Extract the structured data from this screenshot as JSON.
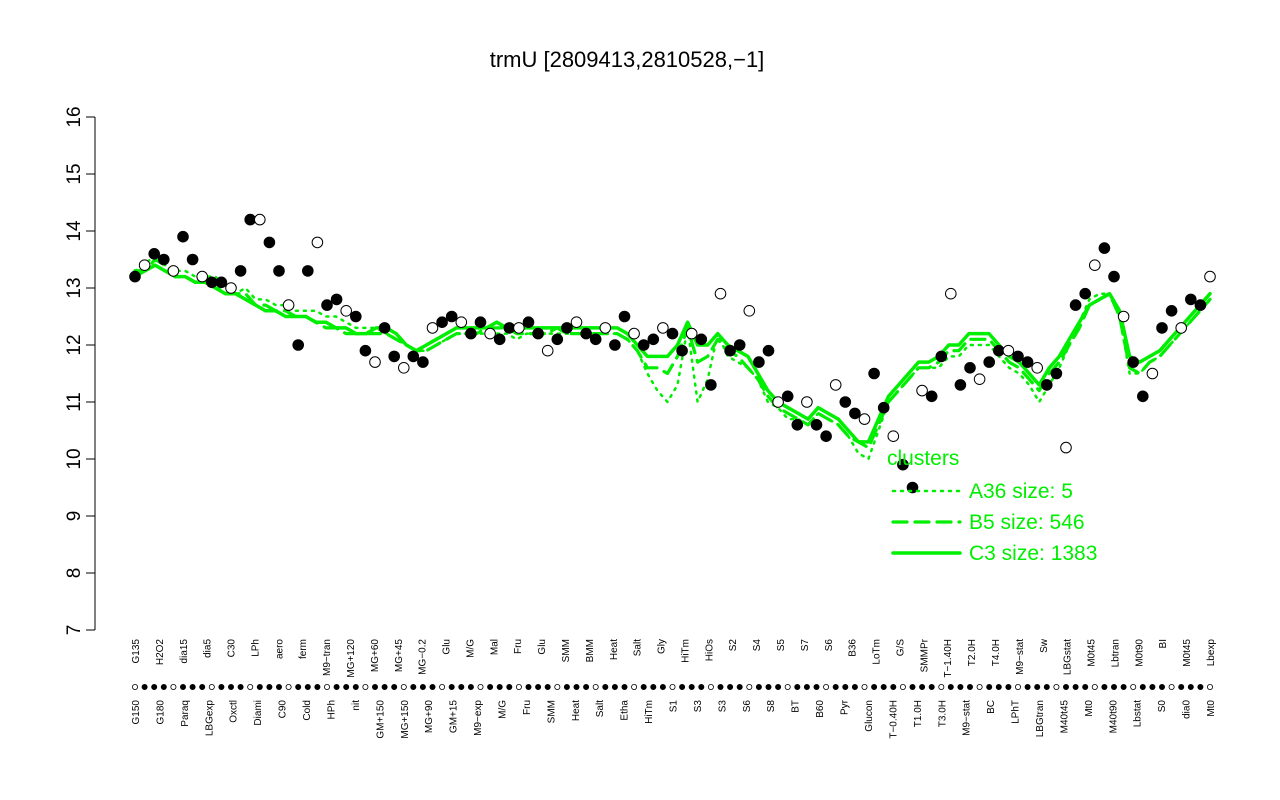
{
  "chart_data": {
    "type": "scatter",
    "title": "trmU [2809413,2810528,−1]",
    "xlabel": "",
    "ylabel": "",
    "ylim": [
      7,
      16
    ],
    "yticks": [
      7,
      8,
      9,
      10,
      11,
      12,
      13,
      14,
      15,
      16
    ],
    "grid": false,
    "legend_position": "bottom-right",
    "legend": {
      "title": "clusters",
      "entries": [
        {
          "label": "A36 size: 5",
          "style": "dotted"
        },
        {
          "label": "B5 size: 546",
          "style": "dashed"
        },
        {
          "label": "C3 size: 1383",
          "style": "solid"
        }
      ]
    },
    "x_tick_labels_top": [
      "G135",
      "H2O2",
      "dia15",
      "dia5",
      "C30",
      "LPh",
      "aero",
      "ferm",
      "M9−tran",
      "MG+120",
      "MG+60",
      "MG+45",
      "MG−0.2",
      "Glu",
      "M/G",
      "Mal",
      "Fru",
      "Glu",
      "SMM",
      "BMM",
      "Heat",
      "Salt",
      "Gly",
      "HiTm",
      "HiOs",
      "S2",
      "S4",
      "S5",
      "S7",
      "S6",
      "B36",
      "LoTm",
      "G/S",
      "SMMPr",
      "T−1.40H",
      "T2.0H",
      "T4.0H",
      "M9−stat",
      "Sw",
      "LBGstat",
      "M0t45",
      "Lbtran",
      "M0t90",
      "BI",
      "M0t45",
      "Lbexp"
    ],
    "x_tick_labels_bottom": [
      "G150",
      "G180",
      "Paraq",
      "LBGexp",
      "Oxctl",
      "Diami",
      "C90",
      "Cold",
      "HPh",
      "nit",
      "GM+150",
      "MG+150",
      "MG+90",
      "GM+15",
      "M9−exp",
      "M/G",
      "Fru",
      "SMM",
      "Heat",
      "Salt",
      "Etha",
      "HiTm",
      "S1",
      "S3",
      "S3",
      "S6",
      "S8",
      "BT",
      "B60",
      "Pyr",
      "Glucon",
      "T−0.40H",
      "T1.0H",
      "T3.0H",
      "M9−stat",
      "BC",
      "LPhT",
      "LBGtran",
      "M40t45",
      "Mt0",
      "M40t90",
      "Lbstat",
      "S0",
      "dia0",
      "Mt0"
    ],
    "series": [
      {
        "name": "A36 size: 5",
        "style": "dotted",
        "values": [
          13.3,
          13.4,
          13.6,
          13.4,
          13.3,
          13.3,
          13.2,
          13.2,
          13.2,
          13.0,
          12.9,
          13.0,
          12.8,
          12.8,
          12.7,
          12.7,
          12.6,
          12.6,
          12.6,
          12.5,
          12.5,
          12.4,
          12.3,
          12.3,
          12.3,
          12.2,
          12.1,
          12.0,
          11.9,
          11.9,
          12.0,
          12.1,
          12.2,
          12.2,
          12.2,
          12.2,
          12.2,
          12.2,
          12.1,
          12.2,
          12.2,
          12.2,
          12.2,
          12.2,
          12.2,
          12.2,
          12.2,
          12.2,
          12.2,
          12.1,
          11.9,
          11.5,
          11.2,
          11.0,
          11.3,
          12.3,
          11.0,
          11.4,
          12.2,
          11.8,
          11.7,
          11.6,
          11.4,
          11.0,
          10.9,
          10.7,
          10.7,
          10.6,
          10.8,
          10.7,
          10.6,
          10.4,
          10.1,
          10.0,
          10.5,
          11.0,
          11.2,
          11.4,
          11.6,
          11.6,
          11.6,
          11.8,
          11.8,
          12.0,
          12.0,
          12.0,
          11.8,
          11.6,
          11.5,
          11.3,
          11.0,
          11.3,
          11.6,
          12.0,
          12.4,
          12.8,
          12.9,
          12.9,
          12.5,
          11.5,
          11.5,
          11.7,
          11.8,
          12.0,
          12.2,
          12.4,
          12.6,
          12.8
        ]
      },
      {
        "name": "B5 size: 546",
        "style": "dashed",
        "values": [
          13.2,
          13.3,
          13.5,
          13.4,
          13.2,
          13.2,
          13.1,
          13.1,
          13.1,
          12.9,
          12.9,
          12.9,
          12.7,
          12.7,
          12.6,
          12.6,
          12.5,
          12.5,
          12.4,
          12.3,
          12.3,
          12.2,
          12.2,
          12.2,
          12.2,
          12.2,
          12.1,
          12.0,
          11.9,
          11.9,
          12.0,
          12.1,
          12.2,
          12.2,
          12.2,
          12.3,
          12.3,
          12.3,
          12.2,
          12.2,
          12.2,
          12.2,
          12.3,
          12.2,
          12.2,
          12.2,
          12.2,
          12.2,
          12.2,
          12.1,
          11.9,
          11.6,
          11.6,
          11.5,
          11.8,
          12.3,
          11.7,
          11.8,
          12.1,
          11.9,
          11.8,
          11.6,
          11.4,
          11.1,
          10.9,
          10.8,
          10.7,
          10.6,
          10.8,
          10.7,
          10.6,
          10.4,
          10.3,
          10.2,
          10.6,
          11.0,
          11.2,
          11.4,
          11.6,
          11.6,
          11.7,
          11.9,
          11.9,
          12.1,
          12.1,
          12.1,
          11.9,
          11.7,
          11.6,
          11.4,
          11.2,
          11.5,
          11.7,
          12.0,
          12.3,
          12.7,
          12.8,
          12.9,
          12.5,
          11.6,
          11.5,
          11.7,
          11.8,
          12.0,
          12.2,
          12.4,
          12.6,
          12.8
        ]
      },
      {
        "name": "C3 size: 1383",
        "style": "solid",
        "values": [
          13.3,
          13.3,
          13.4,
          13.3,
          13.2,
          13.2,
          13.1,
          13.1,
          13.0,
          12.9,
          12.9,
          12.8,
          12.7,
          12.6,
          12.6,
          12.5,
          12.5,
          12.5,
          12.4,
          12.4,
          12.3,
          12.3,
          12.2,
          12.2,
          12.3,
          12.3,
          12.2,
          12.0,
          11.9,
          12.0,
          12.1,
          12.2,
          12.3,
          12.3,
          12.3,
          12.3,
          12.4,
          12.3,
          12.3,
          12.3,
          12.3,
          12.3,
          12.3,
          12.3,
          12.3,
          12.3,
          12.3,
          12.3,
          12.3,
          12.2,
          12.0,
          11.8,
          11.8,
          11.8,
          12.0,
          12.4,
          12.0,
          12.0,
          12.2,
          12.0,
          11.9,
          11.8,
          11.5,
          11.2,
          11.0,
          10.9,
          10.8,
          10.7,
          10.9,
          10.8,
          10.7,
          10.5,
          10.3,
          10.3,
          10.7,
          11.1,
          11.3,
          11.5,
          11.7,
          11.7,
          11.8,
          12.0,
          12.0,
          12.2,
          12.2,
          12.2,
          12.0,
          11.8,
          11.7,
          11.5,
          11.3,
          11.6,
          11.8,
          12.1,
          12.4,
          12.7,
          12.8,
          12.9,
          12.6,
          11.8,
          11.7,
          11.8,
          11.9,
          12.1,
          12.3,
          12.5,
          12.7,
          12.9
        ]
      }
    ],
    "points": [
      {
        "x": 1,
        "y": 13.2
      },
      {
        "x": 2,
        "y": 13.4
      },
      {
        "x": 3,
        "y": 13.6
      },
      {
        "x": 4,
        "y": 13.5
      },
      {
        "x": 5,
        "y": 13.3
      },
      {
        "x": 6,
        "y": 13.9
      },
      {
        "x": 7,
        "y": 13.5
      },
      {
        "x": 8,
        "y": 13.2
      },
      {
        "x": 9,
        "y": 13.1
      },
      {
        "x": 10,
        "y": 13.1
      },
      {
        "x": 11,
        "y": 13.0
      },
      {
        "x": 12,
        "y": 13.3
      },
      {
        "x": 13,
        "y": 14.2
      },
      {
        "x": 14,
        "y": 14.2
      },
      {
        "x": 15,
        "y": 13.8
      },
      {
        "x": 16,
        "y": 13.3
      },
      {
        "x": 17,
        "y": 12.7
      },
      {
        "x": 18,
        "y": 12.0
      },
      {
        "x": 19,
        "y": 13.3
      },
      {
        "x": 20,
        "y": 13.8
      },
      {
        "x": 21,
        "y": 12.7
      },
      {
        "x": 22,
        "y": 12.8
      },
      {
        "x": 23,
        "y": 12.6
      },
      {
        "x": 24,
        "y": 12.5
      },
      {
        "x": 25,
        "y": 11.9
      },
      {
        "x": 26,
        "y": 11.7
      },
      {
        "x": 27,
        "y": 12.3
      },
      {
        "x": 28,
        "y": 11.8
      },
      {
        "x": 29,
        "y": 11.6
      },
      {
        "x": 30,
        "y": 11.8
      },
      {
        "x": 31,
        "y": 11.7
      },
      {
        "x": 32,
        "y": 12.3
      },
      {
        "x": 33,
        "y": 12.4
      },
      {
        "x": 34,
        "y": 12.5
      },
      {
        "x": 35,
        "y": 12.4
      },
      {
        "x": 36,
        "y": 12.2
      },
      {
        "x": 37,
        "y": 12.4
      },
      {
        "x": 38,
        "y": 12.2
      },
      {
        "x": 39,
        "y": 12.1
      },
      {
        "x": 40,
        "y": 12.3
      },
      {
        "x": 41,
        "y": 12.3
      },
      {
        "x": 42,
        "y": 12.4
      },
      {
        "x": 43,
        "y": 12.2
      },
      {
        "x": 44,
        "y": 11.9
      },
      {
        "x": 45,
        "y": 12.1
      },
      {
        "x": 46,
        "y": 12.3
      },
      {
        "x": 47,
        "y": 12.4
      },
      {
        "x": 48,
        "y": 12.2
      },
      {
        "x": 49,
        "y": 12.1
      },
      {
        "x": 50,
        "y": 12.3
      },
      {
        "x": 51,
        "y": 12.0
      },
      {
        "x": 52,
        "y": 12.5
      },
      {
        "x": 53,
        "y": 12.2
      },
      {
        "x": 54,
        "y": 12.0
      },
      {
        "x": 55,
        "y": 12.1
      },
      {
        "x": 56,
        "y": 12.3
      },
      {
        "x": 57,
        "y": 12.2
      },
      {
        "x": 58,
        "y": 11.9
      },
      {
        "x": 59,
        "y": 12.2
      },
      {
        "x": 60,
        "y": 12.1
      },
      {
        "x": 61,
        "y": 11.3
      },
      {
        "x": 62,
        "y": 12.9
      },
      {
        "x": 63,
        "y": 11.9
      },
      {
        "x": 64,
        "y": 12.0
      },
      {
        "x": 65,
        "y": 12.6
      },
      {
        "x": 66,
        "y": 11.7
      },
      {
        "x": 67,
        "y": 11.9
      },
      {
        "x": 68,
        "y": 11.0
      },
      {
        "x": 69,
        "y": 11.1
      },
      {
        "x": 70,
        "y": 10.6
      },
      {
        "x": 71,
        "y": 11.0
      },
      {
        "x": 72,
        "y": 10.6
      },
      {
        "x": 73,
        "y": 10.4
      },
      {
        "x": 74,
        "y": 11.3
      },
      {
        "x": 75,
        "y": 11.0
      },
      {
        "x": 76,
        "y": 10.8
      },
      {
        "x": 77,
        "y": 10.7
      },
      {
        "x": 78,
        "y": 11.5
      },
      {
        "x": 79,
        "y": 10.9
      },
      {
        "x": 80,
        "y": 10.4
      },
      {
        "x": 81,
        "y": 9.9
      },
      {
        "x": 82,
        "y": 9.5
      },
      {
        "x": 83,
        "y": 11.2
      },
      {
        "x": 84,
        "y": 11.1
      },
      {
        "x": 85,
        "y": 11.8
      },
      {
        "x": 86,
        "y": 12.9
      },
      {
        "x": 87,
        "y": 11.3
      },
      {
        "x": 88,
        "y": 11.6
      },
      {
        "x": 89,
        "y": 11.4
      },
      {
        "x": 90,
        "y": 11.7
      },
      {
        "x": 91,
        "y": 11.9
      },
      {
        "x": 92,
        "y": 11.9
      },
      {
        "x": 93,
        "y": 11.8
      },
      {
        "x": 94,
        "y": 11.7
      },
      {
        "x": 95,
        "y": 11.6
      },
      {
        "x": 96,
        "y": 11.3
      },
      {
        "x": 97,
        "y": 11.5
      },
      {
        "x": 98,
        "y": 10.2
      },
      {
        "x": 99,
        "y": 12.7
      },
      {
        "x": 100,
        "y": 12.9
      },
      {
        "x": 101,
        "y": 13.4
      },
      {
        "x": 102,
        "y": 13.7
      },
      {
        "x": 103,
        "y": 13.2
      },
      {
        "x": 104,
        "y": 12.5
      },
      {
        "x": 105,
        "y": 11.7
      },
      {
        "x": 106,
        "y": 11.1
      },
      {
        "x": 107,
        "y": 11.5
      },
      {
        "x": 108,
        "y": 12.3
      },
      {
        "x": 109,
        "y": 12.6
      },
      {
        "x": 110,
        "y": 12.3
      },
      {
        "x": 111,
        "y": 12.8
      },
      {
        "x": 112,
        "y": 12.7
      },
      {
        "x": 113,
        "y": 13.2
      }
    ]
  }
}
